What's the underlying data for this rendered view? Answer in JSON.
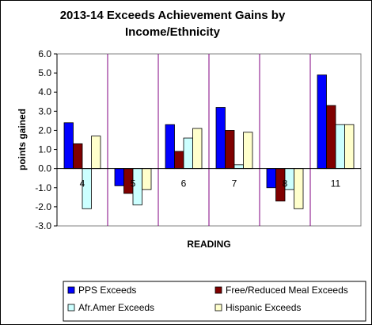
{
  "chart_data": {
    "type": "bar",
    "title_lines": [
      "2013-14 Exceeds Achievement Gains by",
      "Income/Ethnicity"
    ],
    "xlabel": "READING",
    "ylabel": "points gained",
    "categories": [
      "4",
      "5",
      "6",
      "7",
      "8",
      "11"
    ],
    "ylim": [
      -3.0,
      6.0
    ],
    "yticks": [
      "6.0",
      "5.0",
      "4.0",
      "3.0",
      "2.0",
      "1.0",
      "0.0",
      "-1.0",
      "-2.0",
      "-3.0"
    ],
    "ytick_values": [
      6,
      5,
      4,
      3,
      2,
      1,
      0,
      -1,
      -2,
      -3
    ],
    "grid": false,
    "legend_position": "bottom",
    "series": [
      {
        "name": "PPS Exceeds",
        "color": "#0000ff",
        "values": [
          2.4,
          -0.9,
          2.3,
          3.2,
          -1.0,
          4.9
        ]
      },
      {
        "name": "Free/Reduced Meal Exceeds",
        "color": "#800000",
        "values": [
          1.3,
          -1.3,
          0.9,
          2.0,
          -1.7,
          3.3
        ]
      },
      {
        "name": "Afr.Amer Exceeds",
        "color": "#ccffff",
        "values": [
          -2.1,
          -1.9,
          1.6,
          0.2,
          -1.1,
          2.3
        ]
      },
      {
        "name": "Hispanic Exceeds",
        "color": "#ffffcc",
        "values": [
          1.7,
          -1.1,
          2.1,
          1.9,
          -2.1,
          2.3
        ]
      }
    ]
  }
}
